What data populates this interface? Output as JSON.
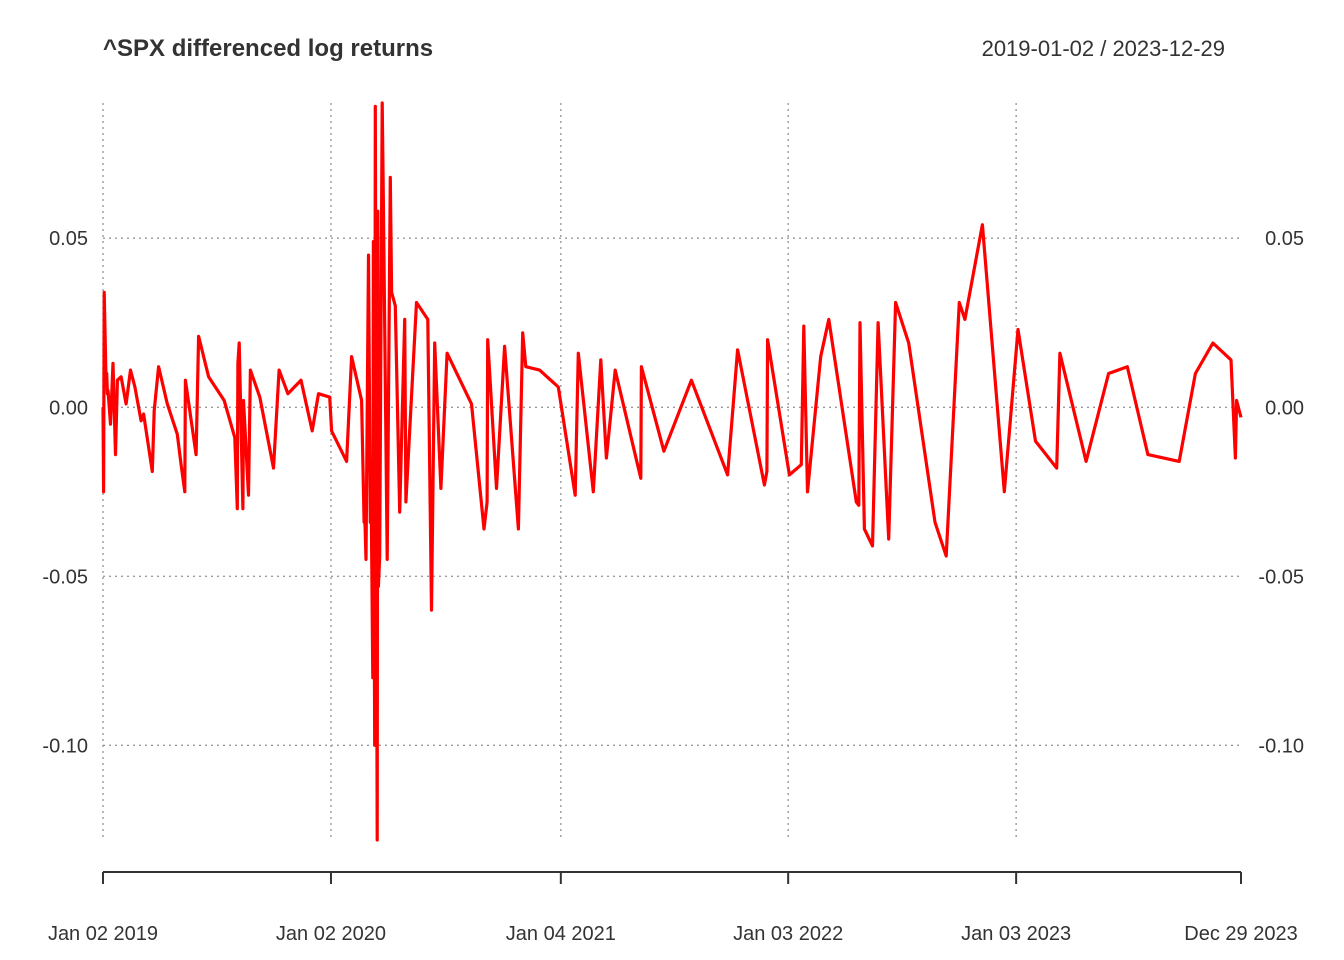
{
  "chart_data": {
    "type": "line",
    "title": "^SPX differenced log returns",
    "date_range_label": "2019-01-02 / 2023-12-29",
    "xlabel": "",
    "ylabel": "",
    "x_ticks": [
      {
        "date": "2019-01-02",
        "label": "Jan 02 2019"
      },
      {
        "date": "2020-01-02",
        "label": "Jan 02 2020"
      },
      {
        "date": "2021-01-04",
        "label": "Jan 04 2021"
      },
      {
        "date": "2022-01-03",
        "label": "Jan 03 2022"
      },
      {
        "date": "2023-01-03",
        "label": "Jan 03 2023"
      },
      {
        "date": "2023-12-29",
        "label": "Dec 29 2023"
      }
    ],
    "x_range": [
      "2019-01-02",
      "2023-12-29"
    ],
    "y_ticks": [
      {
        "value": 0.05,
        "label": "0.05"
      },
      {
        "value": 0.0,
        "label": "0.00"
      },
      {
        "value": -0.05,
        "label": "-0.05"
      },
      {
        "value": -0.1,
        "label": "-0.10"
      }
    ],
    "ylim": [
      -0.128,
      0.09
    ],
    "grid": true,
    "right_axis_labels": true,
    "series": [
      {
        "color": "#ff0000",
        "points": [
          [
            "2019-01-02",
            0.0
          ],
          [
            "2019-01-03",
            -0.025
          ],
          [
            "2019-01-04",
            0.034
          ],
          [
            "2019-01-07",
            0.007
          ],
          [
            "2019-01-08",
            0.01
          ],
          [
            "2019-01-09",
            0.004
          ],
          [
            "2019-01-10",
            0.005
          ],
          [
            "2019-01-14",
            -0.005
          ],
          [
            "2019-01-18",
            0.013
          ],
          [
            "2019-01-22",
            -0.014
          ],
          [
            "2019-01-25",
            0.008
          ],
          [
            "2019-01-31",
            0.009
          ],
          [
            "2019-02-08",
            0.001
          ],
          [
            "2019-02-15",
            0.011
          ],
          [
            "2019-02-22",
            0.006
          ],
          [
            "2019-03-04",
            -0.004
          ],
          [
            "2019-03-08",
            -0.002
          ],
          [
            "2019-03-22",
            -0.019
          ],
          [
            "2019-03-25",
            -0.001
          ],
          [
            "2019-04-01",
            0.012
          ],
          [
            "2019-04-15",
            0.001
          ],
          [
            "2019-05-01",
            -0.008
          ],
          [
            "2019-05-07",
            -0.017
          ],
          [
            "2019-05-13",
            -0.025
          ],
          [
            "2019-05-14",
            0.008
          ],
          [
            "2019-05-31",
            -0.014
          ],
          [
            "2019-06-04",
            0.021
          ],
          [
            "2019-06-20",
            0.009
          ],
          [
            "2019-07-15",
            0.002
          ],
          [
            "2019-08-01",
            -0.009
          ],
          [
            "2019-08-05",
            -0.03
          ],
          [
            "2019-08-06",
            0.013
          ],
          [
            "2019-08-08",
            0.019
          ],
          [
            "2019-08-14",
            -0.03
          ],
          [
            "2019-08-15",
            0.002
          ],
          [
            "2019-08-23",
            -0.026
          ],
          [
            "2019-08-26",
            0.011
          ],
          [
            "2019-09-10",
            0.003
          ],
          [
            "2019-10-02",
            -0.018
          ],
          [
            "2019-10-11",
            0.011
          ],
          [
            "2019-10-25",
            0.004
          ],
          [
            "2019-11-15",
            0.008
          ],
          [
            "2019-12-03",
            -0.007
          ],
          [
            "2019-12-13",
            0.004
          ],
          [
            "2019-12-31",
            0.003
          ],
          [
            "2020-01-03",
            -0.007
          ],
          [
            "2020-01-27",
            -0.016
          ],
          [
            "2020-02-04",
            0.015
          ],
          [
            "2020-02-20",
            0.002
          ],
          [
            "2020-02-24",
            -0.034
          ],
          [
            "2020-02-25",
            -0.031
          ],
          [
            "2020-02-27",
            -0.045
          ],
          [
            "2020-03-02",
            0.045
          ],
          [
            "2020-03-05",
            -0.034
          ],
          [
            "2020-03-06",
            -0.017
          ],
          [
            "2020-03-09",
            -0.08
          ],
          [
            "2020-03-10",
            0.049
          ],
          [
            "2020-03-11",
            -0.05
          ],
          [
            "2020-03-12",
            -0.1
          ],
          [
            "2020-03-13",
            0.089
          ],
          [
            "2020-03-16",
            -0.128
          ],
          [
            "2020-03-17",
            0.058
          ],
          [
            "2020-03-18",
            -0.053
          ],
          [
            "2020-03-20",
            -0.044
          ],
          [
            "2020-03-24",
            0.09
          ],
          [
            "2020-03-26",
            0.06
          ],
          [
            "2020-04-01",
            -0.045
          ],
          [
            "2020-04-06",
            0.068
          ],
          [
            "2020-04-08",
            0.034
          ],
          [
            "2020-04-14",
            0.03
          ],
          [
            "2020-04-21",
            -0.031
          ],
          [
            "2020-04-29",
            0.026
          ],
          [
            "2020-05-01",
            -0.028
          ],
          [
            "2020-05-18",
            0.031
          ],
          [
            "2020-06-05",
            0.026
          ],
          [
            "2020-06-11",
            -0.06
          ],
          [
            "2020-06-16",
            0.019
          ],
          [
            "2020-06-26",
            -0.024
          ],
          [
            "2020-07-06",
            0.016
          ],
          [
            "2020-08-14",
            0.001
          ],
          [
            "2020-09-03",
            -0.036
          ],
          [
            "2020-09-08",
            -0.028
          ],
          [
            "2020-09-09",
            0.02
          ],
          [
            "2020-09-23",
            -0.024
          ],
          [
            "2020-10-06",
            0.018
          ],
          [
            "2020-10-28",
            -0.036
          ],
          [
            "2020-11-04",
            0.022
          ],
          [
            "2020-11-09",
            0.012
          ],
          [
            "2020-12-01",
            0.011
          ],
          [
            "2020-12-31",
            0.006
          ],
          [
            "2021-01-27",
            -0.026
          ],
          [
            "2021-02-01",
            0.016
          ],
          [
            "2021-02-25",
            -0.025
          ],
          [
            "2021-03-09",
            0.014
          ],
          [
            "2021-03-18",
            -0.015
          ],
          [
            "2021-04-01",
            0.011
          ],
          [
            "2021-05-12",
            -0.021
          ],
          [
            "2021-05-13",
            0.012
          ],
          [
            "2021-06-18",
            -0.013
          ],
          [
            "2021-08-01",
            0.008
          ],
          [
            "2021-09-28",
            -0.02
          ],
          [
            "2021-10-14",
            0.017
          ],
          [
            "2021-11-26",
            -0.023
          ],
          [
            "2021-11-30",
            -0.019
          ],
          [
            "2021-12-01",
            0.02
          ],
          [
            "2022-01-05",
            -0.02
          ],
          [
            "2022-01-24",
            -0.017
          ],
          [
            "2022-01-28",
            0.024
          ],
          [
            "2022-02-03",
            -0.025
          ],
          [
            "2022-02-24",
            0.015
          ],
          [
            "2022-03-09",
            0.026
          ],
          [
            "2022-04-22",
            -0.028
          ],
          [
            "2022-04-26",
            -0.029
          ],
          [
            "2022-04-28",
            0.025
          ],
          [
            "2022-05-05",
            -0.036
          ],
          [
            "2022-05-18",
            -0.041
          ],
          [
            "2022-05-27",
            0.025
          ],
          [
            "2022-06-13",
            -0.039
          ],
          [
            "2022-06-24",
            0.031
          ],
          [
            "2022-07-15",
            0.019
          ],
          [
            "2022-08-26",
            -0.034
          ],
          [
            "2022-09-13",
            -0.044
          ],
          [
            "2022-10-04",
            0.031
          ],
          [
            "2022-10-13",
            0.026
          ],
          [
            "2022-11-10",
            0.054
          ],
          [
            "2022-12-15",
            -0.025
          ],
          [
            "2023-01-06",
            0.023
          ],
          [
            "2023-02-03",
            -0.01
          ],
          [
            "2023-03-09",
            -0.018
          ],
          [
            "2023-03-14",
            0.016
          ],
          [
            "2023-04-25",
            -0.016
          ],
          [
            "2023-05-31",
            0.01
          ],
          [
            "2023-06-30",
            0.012
          ],
          [
            "2023-08-02",
            -0.014
          ],
          [
            "2023-09-21",
            -0.016
          ],
          [
            "2023-10-17",
            0.01
          ],
          [
            "2023-11-14",
            0.019
          ],
          [
            "2023-12-13",
            0.014
          ],
          [
            "2023-12-20",
            -0.015
          ],
          [
            "2023-12-22",
            0.002
          ],
          [
            "2023-12-29",
            -0.003
          ]
        ]
      }
    ]
  }
}
